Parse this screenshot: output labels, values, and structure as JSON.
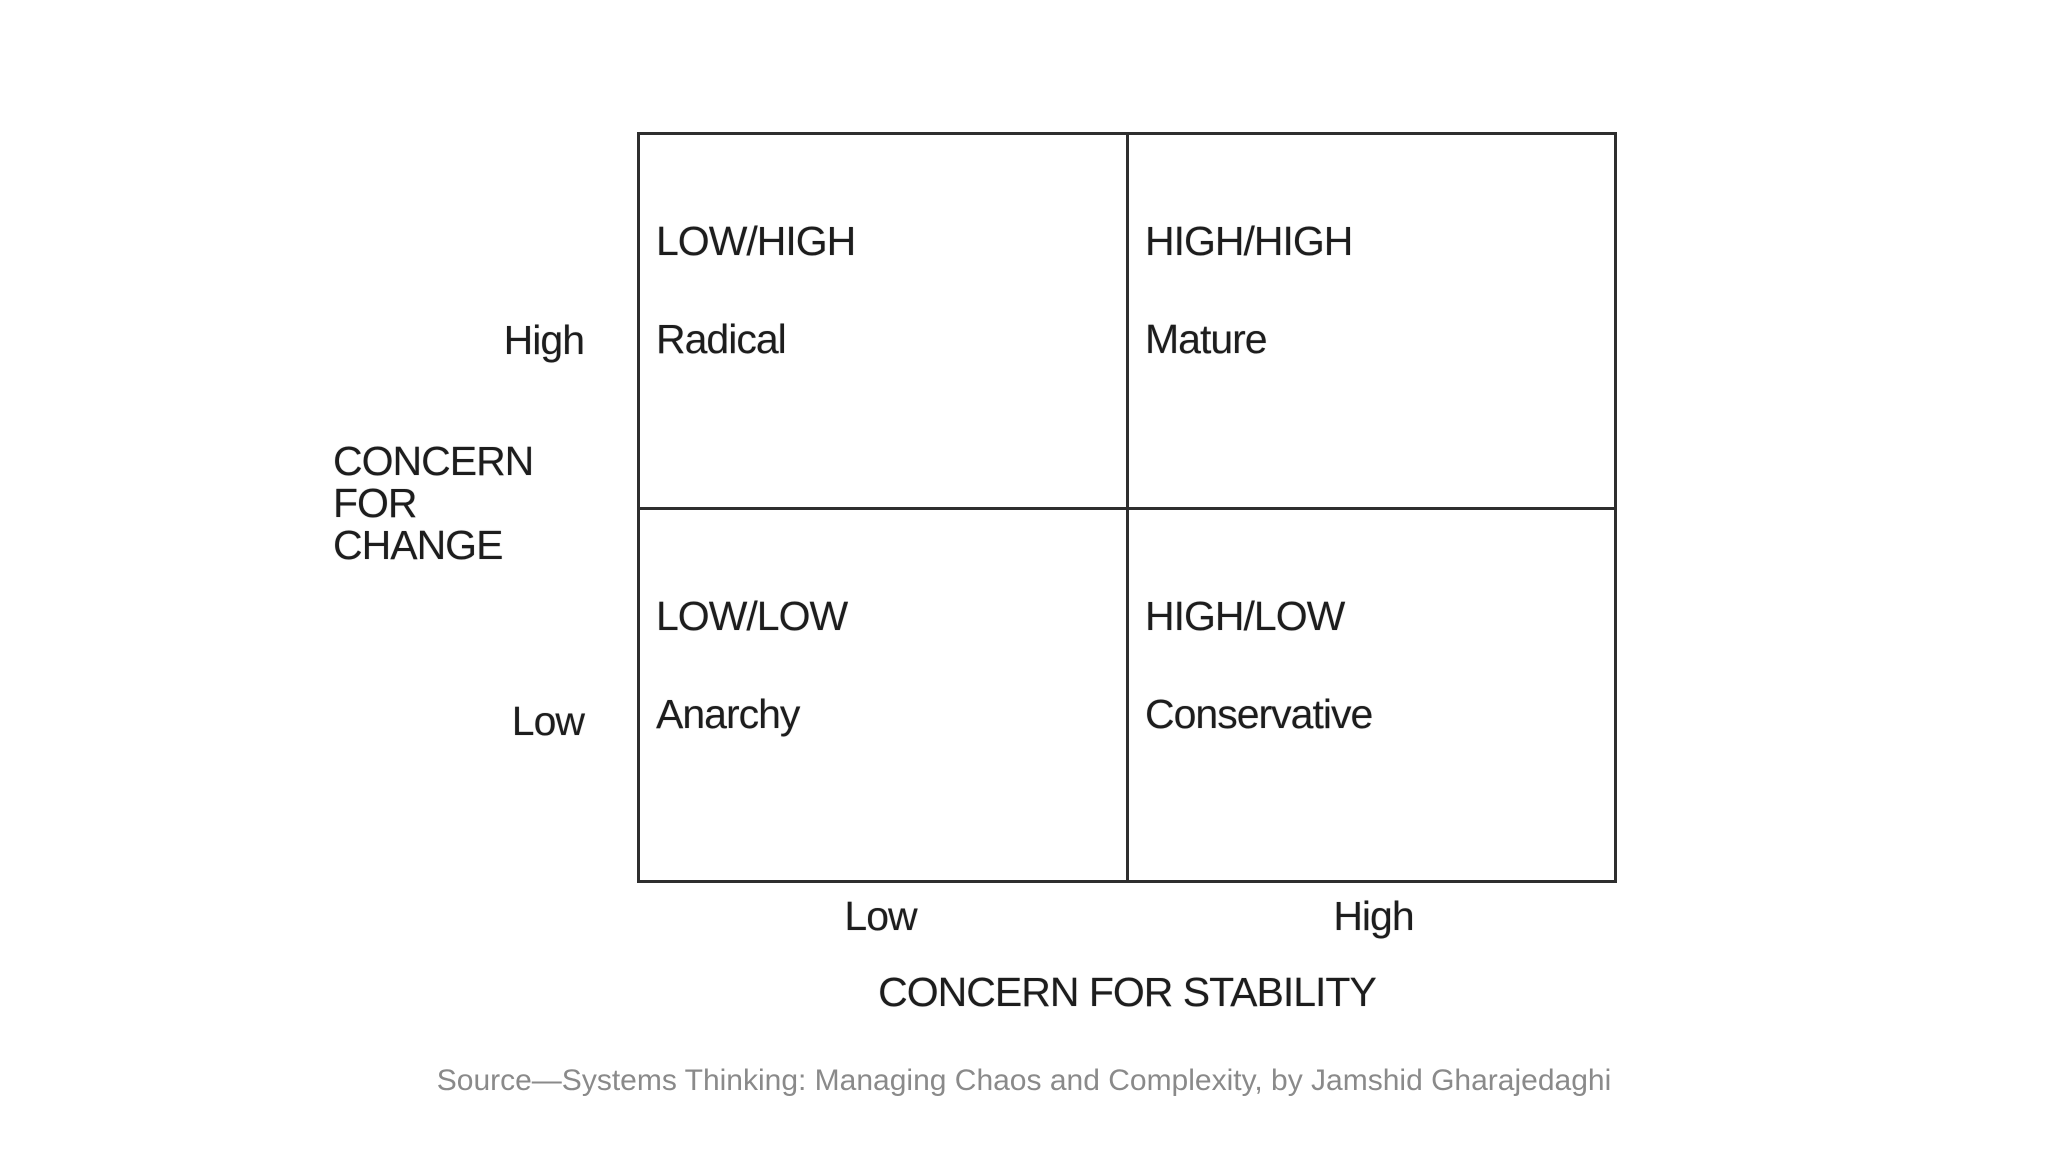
{
  "figure": {
    "quadrants": [
      {
        "position": "top-left",
        "level": "LOW/HIGH",
        "name": "Radical"
      },
      {
        "position": "top-right",
        "level": "HIGH/HIGH",
        "name": "Mature"
      },
      {
        "position": "bottom-left",
        "level": "LOW/LOW",
        "name": "Anarchy"
      },
      {
        "position": "bottom-right",
        "level": "HIGH/LOW",
        "name": "Conservative"
      }
    ],
    "y_axis": {
      "title_lines": [
        "CONCERN",
        "FOR",
        "CHANGE"
      ],
      "top_label": "High",
      "bottom_label": "Low"
    },
    "x_axis": {
      "title": "CONCERN FOR STABILITY",
      "left_label": "Low",
      "right_label": "High"
    },
    "source_citation": "Source—Systems Thinking: Managing Chaos and Complexity, by Jamshid Gharajedaghi"
  },
  "colors": {
    "background": "#ffffff",
    "diagram_text": "#1d1d1d",
    "grid_line": "#2e2e2e",
    "source_text": "#8a8a8a"
  }
}
